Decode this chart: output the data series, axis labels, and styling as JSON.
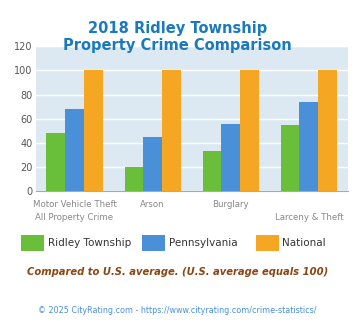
{
  "title_line1": "2018 Ridley Township",
  "title_line2": "Property Crime Comparison",
  "title_color": "#1a7abf",
  "cat_labels_top": [
    "Motor Vehicle Theft",
    "Arson",
    "Burglary",
    ""
  ],
  "cat_labels_bot": [
    "All Property Crime",
    "",
    "",
    "Larceny & Theft"
  ],
  "group_positions": [
    0,
    1,
    2,
    3
  ],
  "values": {
    "ridley": [
      48,
      20,
      33,
      55
    ],
    "pennsylvania": [
      68,
      45,
      56,
      74
    ],
    "national": [
      100,
      100,
      100,
      100
    ]
  },
  "colors": {
    "ridley": "#6abf3a",
    "pennsylvania": "#4a90d9",
    "national": "#f5a623"
  },
  "bar_width": 0.24,
  "ylim": [
    0,
    120
  ],
  "yticks": [
    0,
    20,
    40,
    60,
    80,
    100,
    120
  ],
  "plot_bg_color": "#dce9f2",
  "grid_color": "#ffffff",
  "legend_labels": [
    "Ridley Township",
    "Pennsylvania",
    "National"
  ],
  "footnote1": "Compared to U.S. average. (U.S. average equals 100)",
  "footnote2": "© 2025 CityRating.com - https://www.cityrating.com/crime-statistics/",
  "footnote1_color": "#8b4513",
  "footnote2_color": "#4a90d9"
}
